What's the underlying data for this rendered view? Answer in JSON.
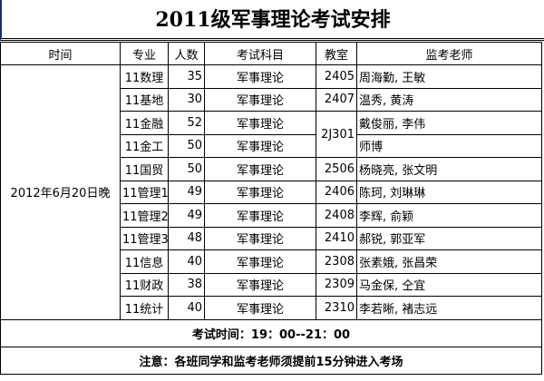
{
  "title": "2011级军事理论考试安排",
  "headers": [
    "时间",
    "专业",
    "人数",
    "考试科目",
    "教室",
    "监考老师"
  ],
  "time": "2012年6月20日晚",
  "rows": [
    {
      "major": "11数理",
      "count": "35",
      "subject": "军事理论",
      "room": "2405",
      "teachers": "周海勤, 王敏"
    },
    {
      "major": "11基地",
      "count": "30",
      "subject": "军事理论",
      "room": "2407",
      "teachers": "温秀, 黄涛"
    },
    {
      "major": "11金融",
      "count": "52",
      "subject": "军事理论",
      "room": "2J301",
      "teachers": "戴俊丽, 李伟"
    },
    {
      "major": "11金工",
      "count": "50",
      "subject": "军事理论",
      "room": "",
      "teachers": "师博"
    },
    {
      "major": "11国贸",
      "count": "50",
      "subject": "军事理论",
      "room": "2506",
      "teachers": "杨晓亮, 张文明"
    },
    {
      "major": "11管理1",
      "count": "49",
      "subject": "军事理论",
      "room": "2406",
      "teachers": "陈珂, 刘琳琳"
    },
    {
      "major": "11管理2",
      "count": "49",
      "subject": "军事理论",
      "room": "2408",
      "teachers": "李辉, 俞颖"
    },
    {
      "major": "11管理3",
      "count": "48",
      "subject": "军事理论",
      "room": "2410",
      "teachers": "郝锐, 郭亚军"
    },
    {
      "major": "11信息",
      "count": "40",
      "subject": "军事理论",
      "room": "2308",
      "teachers": "张素娥, 张昌荣"
    },
    {
      "major": "11财政",
      "count": "38",
      "subject": "军事理论",
      "room": "2309",
      "teachers": "马金保, 仝宜"
    },
    {
      "major": "11统计",
      "count": "40",
      "subject": "军事理论",
      "room": "2310",
      "teachers": "李若晰, 褚志远"
    }
  ],
  "exam_time": "考试时间：19：00--21：00",
  "notice": "注意：各班同学和监考老师须提前15分钟进入考场"
}
